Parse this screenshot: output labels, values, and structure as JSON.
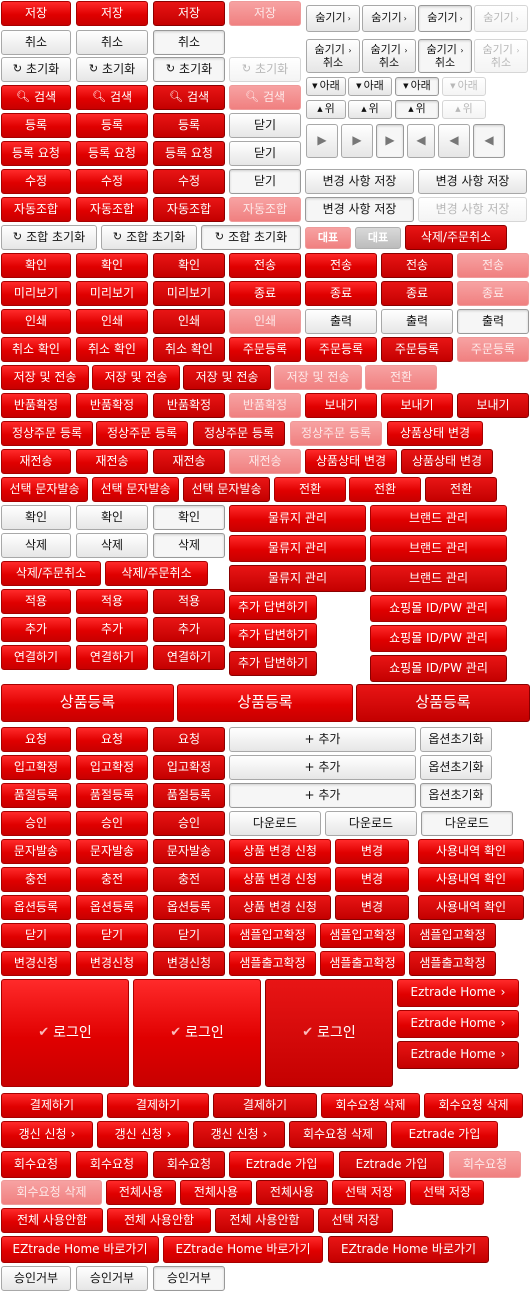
{
  "labels": {
    "save": "저장",
    "hide": "숨기기",
    "cancel": "취소",
    "hide_cancel_l1": "숨기기",
    "hide_cancel_l2": "취소",
    "reset": "초기화",
    "down": "아래",
    "search": "검색",
    "up": "위",
    "register": "등록",
    "close": "닫기",
    "register_request": "등록 요청",
    "modify": "수정",
    "save_changes": "변경 사항 저장",
    "auto_combine": "자동조합",
    "combo_reset": "조합 초기화",
    "main": "대표",
    "delete_order_cancel": "삭제/주문취소",
    "confirm": "확인",
    "send": "전송",
    "preview": "미리보기",
    "end": "종료",
    "print": "인쇄",
    "output": "출력",
    "cancel_confirm": "취소 확인",
    "order_register": "주문등록",
    "save_and_send": "저장 및 전송",
    "switch": "전환",
    "return_confirm": "반품확정",
    "send_out": "보내기",
    "normal_order_register": "정상주문 등록",
    "product_status_change": "상품상태 변경",
    "resend": "재전송",
    "select_sms": "선택 문자발송",
    "delete": "삭제",
    "logistics_manage": "물류지 관리",
    "brand_manage": "브랜드 관리",
    "apply": "적용",
    "add": "추가",
    "add_answer": "추가 답변하기",
    "mall_idpw": "쇼핑몰 ID/PW 관리",
    "connect": "연결하기",
    "product_register": "상품등록",
    "request": "요청",
    "plus_add": "+ 추가",
    "option_reset": "옵션초기화",
    "stock_confirm": "입고확정",
    "soldout_register": "품절등록",
    "approve": "승인",
    "download": "다운로드",
    "sms_send": "문자발송",
    "product_change_request": "상품 변경 신청",
    "change": "변경",
    "usage_confirm": "사용내역 확인",
    "charge": "충전",
    "option_register": "옵션등록",
    "sample_in_confirm": "샘플입고확정",
    "change_request": "변경신청",
    "sample_out_confirm": "샘플출고확정",
    "login": "로그인",
    "eztrade_home": "Eztrade Home",
    "pay": "결제하기",
    "return_req_delete": "회수요청 삭제",
    "renew_request": "갱신 신청",
    "eztrade_join": "Eztrade 가입",
    "return_request": "회수요청",
    "all_use": "전체사용",
    "select_save": "선택 저장",
    "all_nouse": "전체 사용안함",
    "eztrade_home_go": "EZtrade Home 바로가기",
    "reject_approval": "승인거부"
  },
  "icons": {
    "reset": "refresh-icon",
    "search": "search-icon",
    "chevron": "chevron-right-icon",
    "triangle_down": "triangle-down-icon",
    "triangle_up": "triangle-up-icon",
    "triangle_right": "triangle-right-icon",
    "triangle_left": "triangle-left-icon",
    "check": "check-icon"
  },
  "colors": {
    "red": "#e00000",
    "dark_red": "#c40000",
    "pink_disabled": "#f08080",
    "gray": "#e6e6e6",
    "gray_disabled": "#d6d6d6"
  }
}
